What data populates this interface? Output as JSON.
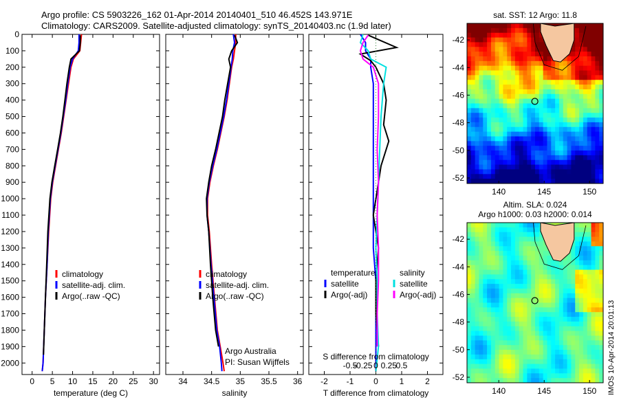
{
  "header": {
    "line1": "Argo profile: CS 5903226_162 01-Apr-2014 20140401_510 46.452S 143.971E",
    "line2": "Climatology: CARS2009. Satellite-adjusted climatology: synTS_20140403.nc (1.9d later)"
  },
  "watermark": "IMOS 10-Apr-2014 20:01:13",
  "colors": {
    "climatology": "#ff0000",
    "satellite": "#0000ff",
    "argo": "#000000",
    "s_satellite": "#00e0e0",
    "s_argo": "#ff00ff"
  },
  "chart_data": [
    {
      "type": "line",
      "panel": "temperature",
      "xlabel": "temperature (deg C)",
      "ylabel": "",
      "xlim": [
        -2.5,
        31.5
      ],
      "ylim": [
        2070,
        0
      ],
      "xticks": [
        0,
        5,
        10,
        15,
        20,
        25,
        30
      ],
      "yticks": [
        0,
        100,
        200,
        300,
        400,
        500,
        600,
        700,
        800,
        900,
        1000,
        1100,
        1200,
        1300,
        1400,
        1500,
        1600,
        1700,
        1800,
        1900,
        2000
      ],
      "legend": [
        "climatology",
        "satellite-adj. clim.",
        "Argo(..raw -QC)"
      ],
      "series": [
        {
          "name": "climatology",
          "color": "#ff0000",
          "x": [
            12.2,
            12.0,
            11.8,
            10.2,
            9.6,
            9.0,
            8.4,
            7.8,
            7.2,
            6.5,
            5.8,
            5.1,
            4.6,
            4.1,
            3.7,
            3.3,
            3.0,
            2.7,
            2.5
          ],
          "y": [
            0,
            50,
            100,
            150,
            200,
            300,
            400,
            500,
            600,
            700,
            800,
            900,
            1000,
            1200,
            1400,
            1600,
            1800,
            2000,
            2050
          ]
        },
        {
          "name": "satellite-adj. clim.",
          "color": "#0000ff",
          "x": [
            11.6,
            11.6,
            11.4,
            10.0,
            9.4,
            8.8,
            8.3,
            7.7,
            7.1,
            6.4,
            5.7,
            5.0,
            4.5,
            4.0,
            3.7,
            3.3,
            3.0,
            2.7,
            2.5
          ],
          "y": [
            0,
            50,
            100,
            150,
            200,
            300,
            400,
            500,
            600,
            700,
            800,
            900,
            1000,
            1200,
            1400,
            1600,
            1800,
            2000,
            2050
          ]
        },
        {
          "name": "Argo(..raw -QC)",
          "color": "#000000",
          "x": [
            11.9,
            11.9,
            11.7,
            9.6,
            9.2,
            8.6,
            8.1,
            7.6,
            7.0,
            6.3,
            5.6,
            4.9,
            4.4,
            3.9,
            3.6,
            3.3,
            3.0,
            2.8
          ],
          "y": [
            5,
            50,
            100,
            150,
            200,
            300,
            400,
            500,
            600,
            700,
            800,
            900,
            1000,
            1200,
            1400,
            1600,
            1800,
            1950
          ]
        }
      ]
    },
    {
      "type": "line",
      "panel": "salinity",
      "xlabel": "salinity",
      "ylabel": "",
      "xlim": [
        33.7,
        36.1
      ],
      "ylim": [
        2070,
        0
      ],
      "xticks": [
        34,
        34.5,
        35,
        35.5,
        36
      ],
      "xticklabels": [
        "34",
        "34.5",
        "35",
        "35.5",
        "36"
      ],
      "legend": [
        "climatology",
        "satellite-adj. clim.",
        "Argo(..raw -QC)"
      ],
      "annotation": [
        "Argo Australia",
        "PI: Susan Wijffels"
      ],
      "series": [
        {
          "name": "climatology",
          "color": "#ff0000",
          "x": [
            34.92,
            34.92,
            34.9,
            34.88,
            34.85,
            34.81,
            34.77,
            34.72,
            34.66,
            34.6,
            34.53,
            34.47,
            34.43,
            34.43,
            34.46,
            34.5,
            34.55,
            34.6,
            34.65,
            34.7,
            34.72
          ],
          "y": [
            0,
            50,
            100,
            150,
            200,
            300,
            400,
            500,
            600,
            700,
            800,
            900,
            1000,
            1100,
            1200,
            1400,
            1600,
            1800,
            1900,
            2000,
            2050
          ]
        },
        {
          "name": "satellite-adj. clim.",
          "color": "#0000ff",
          "x": [
            34.88,
            34.9,
            34.87,
            34.86,
            34.84,
            34.8,
            34.76,
            34.71,
            34.65,
            34.59,
            34.52,
            34.46,
            34.42,
            34.42,
            34.45,
            34.49,
            34.54,
            34.59,
            34.64,
            34.67,
            34.68
          ],
          "y": [
            0,
            50,
            100,
            150,
            200,
            300,
            400,
            500,
            600,
            700,
            800,
            900,
            1000,
            1100,
            1200,
            1400,
            1600,
            1800,
            1900,
            2000,
            2050
          ]
        },
        {
          "name": "Argo(..raw -QC)",
          "color": "#000000",
          "x": [
            34.9,
            34.95,
            34.85,
            34.8,
            34.83,
            34.78,
            34.73,
            34.69,
            34.63,
            34.57,
            34.5,
            34.45,
            34.41,
            34.42,
            34.45,
            34.48,
            34.52,
            34.57,
            34.62
          ],
          "y": [
            5,
            50,
            100,
            150,
            200,
            300,
            400,
            500,
            600,
            700,
            800,
            900,
            1000,
            1100,
            1200,
            1400,
            1600,
            1800,
            1900
          ]
        }
      ]
    },
    {
      "type": "line",
      "panel": "difference",
      "xlabel": "T difference from climatology",
      "xlabel_top": "S difference from climatology",
      "xlim": [
        -2.6,
        2.6
      ],
      "ylim": [
        2070,
        0
      ],
      "xticks": [
        -2,
        -1,
        0,
        1,
        2
      ],
      "sticks": [
        -0.5,
        -0.25,
        0,
        0.25,
        0.5
      ],
      "sticklabels": [
        "-0.5",
        "-0.25",
        "0",
        "0.25",
        "0.5"
      ],
      "legend_temperature": {
        "heading": "temperature",
        "items": [
          "satellite",
          "Argo(-adj)"
        ]
      },
      "legend_salinity": {
        "heading": "salinity",
        "items": [
          "satellite",
          "Argo(-adj)"
        ]
      },
      "series": [
        {
          "name": "T satellite",
          "color": "#0000ff",
          "x": [
            -0.6,
            -0.4,
            -0.4,
            -0.2,
            -0.2,
            -0.1,
            -0.1,
            -0.1,
            -0.1,
            -0.1,
            -0.1,
            0.0,
            0.0,
            0.0,
            0.0
          ],
          "y": [
            0,
            50,
            100,
            150,
            200,
            300,
            500,
            700,
            900,
            1100,
            1300,
            1500,
            1700,
            1900,
            2050
          ]
        },
        {
          "name": "T Argo(-adj)",
          "color": "#000000",
          "x": [
            -0.3,
            0.8,
            -0.6,
            -0.2,
            0.0,
            0.3,
            0.4,
            0.3,
            0.5,
            0.2,
            0.1,
            -0.1,
            0.1,
            0.0,
            0.0,
            0.1
          ],
          "y": [
            5,
            80,
            120,
            160,
            200,
            300,
            400,
            550,
            650,
            800,
            900,
            1100,
            1300,
            1500,
            1700,
            1900
          ]
        },
        {
          "name": "S satellite",
          "color": "#00e0e0",
          "x": [
            -0.5,
            -0.6,
            -0.3,
            -0.2,
            0.4,
            0.3,
            0.2,
            0.15,
            0.1,
            0.05,
            0.0,
            0.05,
            0.05,
            0.1,
            0.0
          ],
          "y": [
            0,
            50,
            100,
            150,
            200,
            300,
            500,
            700,
            900,
            1100,
            1300,
            1500,
            1700,
            1900,
            2050
          ]
        },
        {
          "name": "S Argo(-adj)",
          "color": "#ff00ff",
          "x": [
            -0.3,
            -0.5,
            -0.6,
            -0.5,
            -0.1,
            0.1,
            0.1,
            0.05,
            0.1,
            0.05,
            0.1,
            0.1,
            0.05,
            0.05
          ],
          "y": [
            5,
            50,
            100,
            150,
            200,
            300,
            500,
            700,
            900,
            1100,
            1300,
            1500,
            1700,
            1900
          ]
        }
      ]
    },
    {
      "type": "heatmap",
      "panel": "sst_map",
      "title": "sat. SST: 12  Argo: 11.8",
      "xlim": [
        136.5,
        151.5
      ],
      "ylim": [
        -52.4,
        -40.8
      ],
      "xticks": [
        140,
        145,
        150
      ],
      "yticks": [
        -42,
        -44,
        -46,
        -48,
        -50,
        -52
      ],
      "marker": {
        "lon": 143.971,
        "lat": -46.452
      }
    },
    {
      "type": "heatmap",
      "panel": "sla_map",
      "title_line1": "Altim. SLA: 0.024",
      "title_line2": "Argo h1000: 0.03  h2000: 0.014",
      "xlim": [
        136.5,
        151.5
      ],
      "ylim": [
        -52.4,
        -40.8
      ],
      "xticks": [
        140,
        145,
        150
      ],
      "yticks": [
        -42,
        -44,
        -46,
        -48,
        -50,
        -52
      ],
      "marker": {
        "lon": 143.971,
        "lat": -46.452
      }
    }
  ]
}
